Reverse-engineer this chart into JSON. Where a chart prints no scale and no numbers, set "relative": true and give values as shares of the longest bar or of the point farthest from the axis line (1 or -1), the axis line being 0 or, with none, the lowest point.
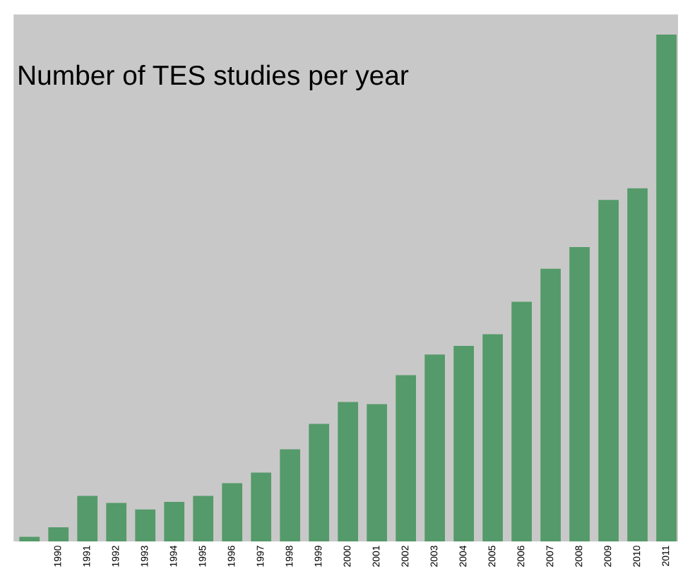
{
  "chart_data": {
    "type": "bar",
    "title": "Number of TES studies per year",
    "relative": true,
    "color": "#559a6a",
    "categories": [
      null,
      "1990",
      "1991",
      "1992",
      "1993",
      "1994",
      "1995",
      "1996",
      "1997",
      "1998",
      "1999",
      "2000",
      "2001",
      "2002",
      "2003",
      "2004",
      "2005",
      "2006",
      "2007",
      "2008",
      "2009",
      "2010",
      "2011"
    ],
    "values": [
      0.009,
      0.028,
      0.09,
      0.076,
      0.063,
      0.078,
      0.09,
      0.115,
      0.136,
      0.182,
      0.232,
      0.275,
      0.271,
      0.328,
      0.369,
      0.386,
      0.409,
      0.473,
      0.538,
      0.581,
      0.674,
      0.697,
      1
    ]
  }
}
